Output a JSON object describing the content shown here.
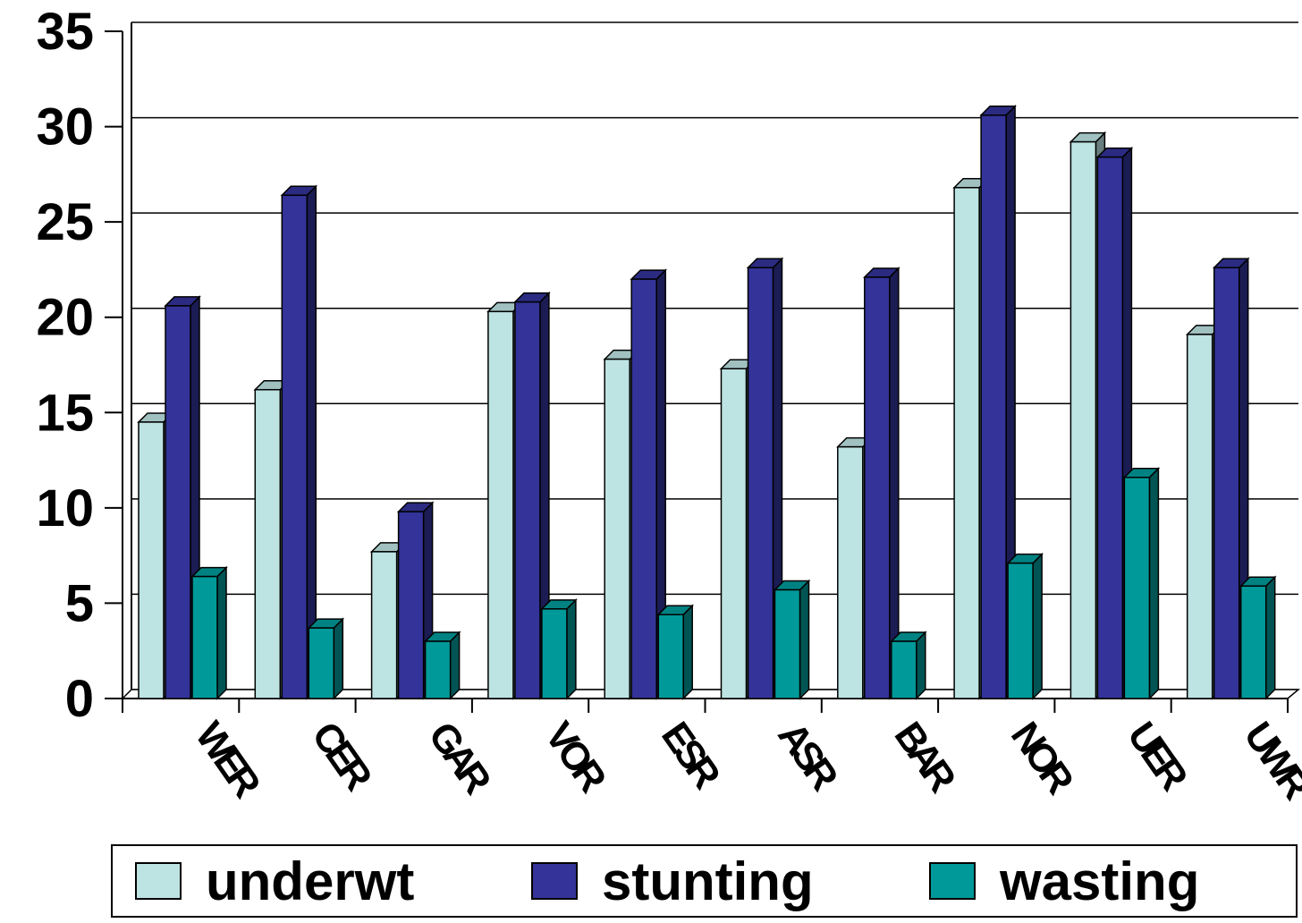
{
  "chart_data": {
    "type": "bar",
    "categories": [
      "WER",
      "CER",
      "GAR",
      "VOR",
      "ESR",
      "ASR",
      "BAR",
      "NOR",
      "UER",
      "UWR"
    ],
    "series": [
      {
        "name": "underwt",
        "color": "#bde3e3",
        "values": [
          14.5,
          16.2,
          7.7,
          20.3,
          17.8,
          17.3,
          13.2,
          26.8,
          29.2,
          19.1
        ]
      },
      {
        "name": "stunting",
        "color": "#333399",
        "values": [
          20.6,
          26.4,
          9.8,
          20.8,
          22.0,
          22.6,
          22.1,
          30.6,
          28.4,
          22.6
        ]
      },
      {
        "name": "wasting",
        "color": "#009999",
        "values": [
          6.4,
          3.7,
          3.0,
          4.7,
          4.4,
          5.7,
          3.0,
          7.1,
          11.6,
          5.9
        ]
      }
    ],
    "ylim": [
      0,
      35
    ],
    "yticks": [
      0,
      5,
      10,
      15,
      20,
      25,
      30,
      35
    ],
    "grid": true
  }
}
